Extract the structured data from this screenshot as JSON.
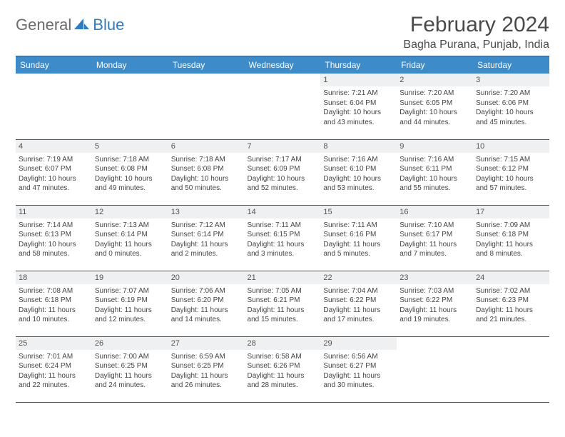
{
  "logo": {
    "general": "General",
    "blue": "Blue"
  },
  "colors": {
    "header_bg": "#3d8bc8",
    "header_text": "#ffffff",
    "daynum_bg": "#eef0f1",
    "rule": "#2f5d8a",
    "body_text": "#444444",
    "logo_gray": "#6b6b6b",
    "logo_blue": "#2f7bbf"
  },
  "title": "February 2024",
  "location": "Bagha Purana, Punjab, India",
  "dow": [
    "Sunday",
    "Monday",
    "Tuesday",
    "Wednesday",
    "Thursday",
    "Friday",
    "Saturday"
  ],
  "weeks": [
    [
      {
        "n": "",
        "sr": "",
        "ss": "",
        "dl": ""
      },
      {
        "n": "",
        "sr": "",
        "ss": "",
        "dl": ""
      },
      {
        "n": "",
        "sr": "",
        "ss": "",
        "dl": ""
      },
      {
        "n": "",
        "sr": "",
        "ss": "",
        "dl": ""
      },
      {
        "n": "1",
        "sr": "Sunrise: 7:21 AM",
        "ss": "Sunset: 6:04 PM",
        "dl": "Daylight: 10 hours and 43 minutes."
      },
      {
        "n": "2",
        "sr": "Sunrise: 7:20 AM",
        "ss": "Sunset: 6:05 PM",
        "dl": "Daylight: 10 hours and 44 minutes."
      },
      {
        "n": "3",
        "sr": "Sunrise: 7:20 AM",
        "ss": "Sunset: 6:06 PM",
        "dl": "Daylight: 10 hours and 45 minutes."
      }
    ],
    [
      {
        "n": "4",
        "sr": "Sunrise: 7:19 AM",
        "ss": "Sunset: 6:07 PM",
        "dl": "Daylight: 10 hours and 47 minutes."
      },
      {
        "n": "5",
        "sr": "Sunrise: 7:18 AM",
        "ss": "Sunset: 6:08 PM",
        "dl": "Daylight: 10 hours and 49 minutes."
      },
      {
        "n": "6",
        "sr": "Sunrise: 7:18 AM",
        "ss": "Sunset: 6:08 PM",
        "dl": "Daylight: 10 hours and 50 minutes."
      },
      {
        "n": "7",
        "sr": "Sunrise: 7:17 AM",
        "ss": "Sunset: 6:09 PM",
        "dl": "Daylight: 10 hours and 52 minutes."
      },
      {
        "n": "8",
        "sr": "Sunrise: 7:16 AM",
        "ss": "Sunset: 6:10 PM",
        "dl": "Daylight: 10 hours and 53 minutes."
      },
      {
        "n": "9",
        "sr": "Sunrise: 7:16 AM",
        "ss": "Sunset: 6:11 PM",
        "dl": "Daylight: 10 hours and 55 minutes."
      },
      {
        "n": "10",
        "sr": "Sunrise: 7:15 AM",
        "ss": "Sunset: 6:12 PM",
        "dl": "Daylight: 10 hours and 57 minutes."
      }
    ],
    [
      {
        "n": "11",
        "sr": "Sunrise: 7:14 AM",
        "ss": "Sunset: 6:13 PM",
        "dl": "Daylight: 10 hours and 58 minutes."
      },
      {
        "n": "12",
        "sr": "Sunrise: 7:13 AM",
        "ss": "Sunset: 6:14 PM",
        "dl": "Daylight: 11 hours and 0 minutes."
      },
      {
        "n": "13",
        "sr": "Sunrise: 7:12 AM",
        "ss": "Sunset: 6:14 PM",
        "dl": "Daylight: 11 hours and 2 minutes."
      },
      {
        "n": "14",
        "sr": "Sunrise: 7:11 AM",
        "ss": "Sunset: 6:15 PM",
        "dl": "Daylight: 11 hours and 3 minutes."
      },
      {
        "n": "15",
        "sr": "Sunrise: 7:11 AM",
        "ss": "Sunset: 6:16 PM",
        "dl": "Daylight: 11 hours and 5 minutes."
      },
      {
        "n": "16",
        "sr": "Sunrise: 7:10 AM",
        "ss": "Sunset: 6:17 PM",
        "dl": "Daylight: 11 hours and 7 minutes."
      },
      {
        "n": "17",
        "sr": "Sunrise: 7:09 AM",
        "ss": "Sunset: 6:18 PM",
        "dl": "Daylight: 11 hours and 8 minutes."
      }
    ],
    [
      {
        "n": "18",
        "sr": "Sunrise: 7:08 AM",
        "ss": "Sunset: 6:18 PM",
        "dl": "Daylight: 11 hours and 10 minutes."
      },
      {
        "n": "19",
        "sr": "Sunrise: 7:07 AM",
        "ss": "Sunset: 6:19 PM",
        "dl": "Daylight: 11 hours and 12 minutes."
      },
      {
        "n": "20",
        "sr": "Sunrise: 7:06 AM",
        "ss": "Sunset: 6:20 PM",
        "dl": "Daylight: 11 hours and 14 minutes."
      },
      {
        "n": "21",
        "sr": "Sunrise: 7:05 AM",
        "ss": "Sunset: 6:21 PM",
        "dl": "Daylight: 11 hours and 15 minutes."
      },
      {
        "n": "22",
        "sr": "Sunrise: 7:04 AM",
        "ss": "Sunset: 6:22 PM",
        "dl": "Daylight: 11 hours and 17 minutes."
      },
      {
        "n": "23",
        "sr": "Sunrise: 7:03 AM",
        "ss": "Sunset: 6:22 PM",
        "dl": "Daylight: 11 hours and 19 minutes."
      },
      {
        "n": "24",
        "sr": "Sunrise: 7:02 AM",
        "ss": "Sunset: 6:23 PM",
        "dl": "Daylight: 11 hours and 21 minutes."
      }
    ],
    [
      {
        "n": "25",
        "sr": "Sunrise: 7:01 AM",
        "ss": "Sunset: 6:24 PM",
        "dl": "Daylight: 11 hours and 22 minutes."
      },
      {
        "n": "26",
        "sr": "Sunrise: 7:00 AM",
        "ss": "Sunset: 6:25 PM",
        "dl": "Daylight: 11 hours and 24 minutes."
      },
      {
        "n": "27",
        "sr": "Sunrise: 6:59 AM",
        "ss": "Sunset: 6:25 PM",
        "dl": "Daylight: 11 hours and 26 minutes."
      },
      {
        "n": "28",
        "sr": "Sunrise: 6:58 AM",
        "ss": "Sunset: 6:26 PM",
        "dl": "Daylight: 11 hours and 28 minutes."
      },
      {
        "n": "29",
        "sr": "Sunrise: 6:56 AM",
        "ss": "Sunset: 6:27 PM",
        "dl": "Daylight: 11 hours and 30 minutes."
      },
      {
        "n": "",
        "sr": "",
        "ss": "",
        "dl": ""
      },
      {
        "n": "",
        "sr": "",
        "ss": "",
        "dl": ""
      }
    ]
  ]
}
